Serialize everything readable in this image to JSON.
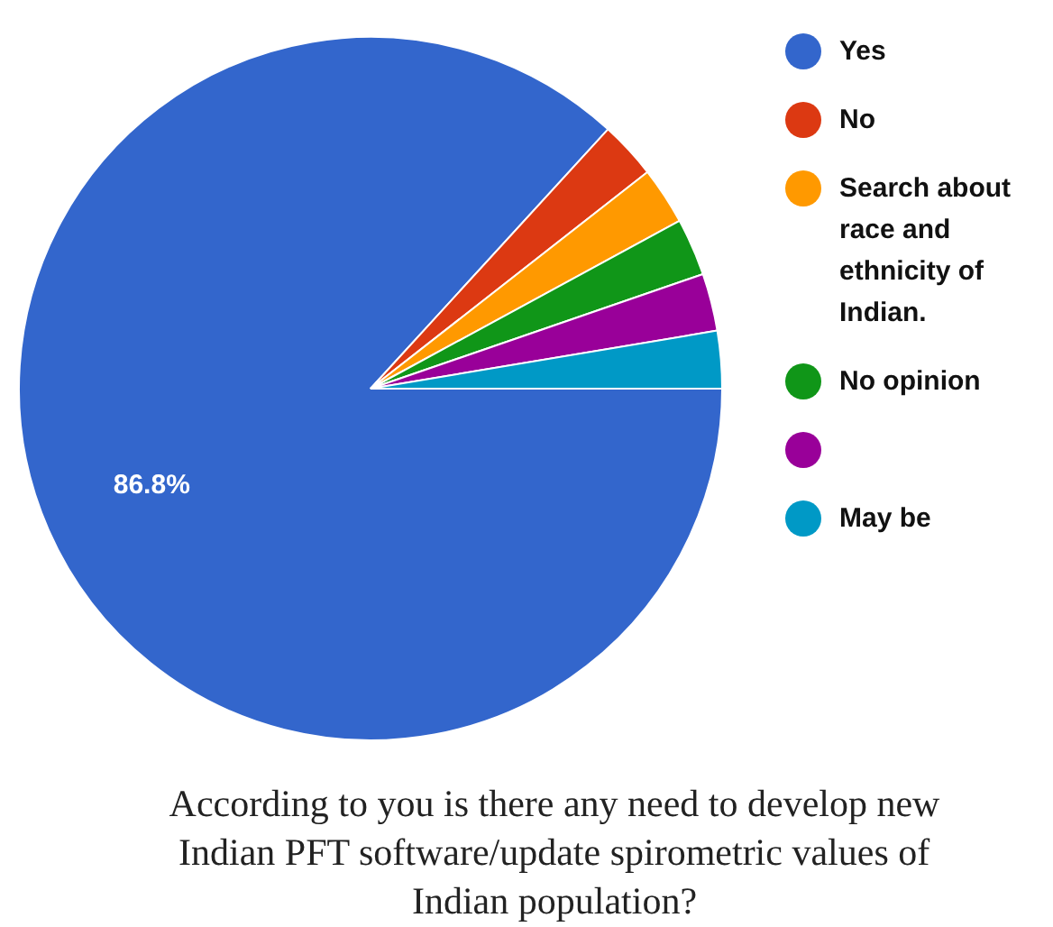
{
  "chart_data": {
    "type": "pie",
    "title": "According to you is there any need to develop new Indian PFT software/update spirometric values of Indian population?",
    "categories": [
      "Yes",
      "No",
      "Search about race and ethnicity of Indian.",
      "No opinion",
      null,
      "May be"
    ],
    "values": [
      86.8,
      2.64,
      2.64,
      2.64,
      2.64,
      2.64
    ],
    "colors": [
      "#3366cc",
      "#dc3912",
      "#ff9900",
      "#109618",
      "#990099",
      "#0099c6"
    ],
    "value_labels": [
      "86.8%",
      null,
      null,
      null,
      null,
      null
    ],
    "legend": "right"
  }
}
